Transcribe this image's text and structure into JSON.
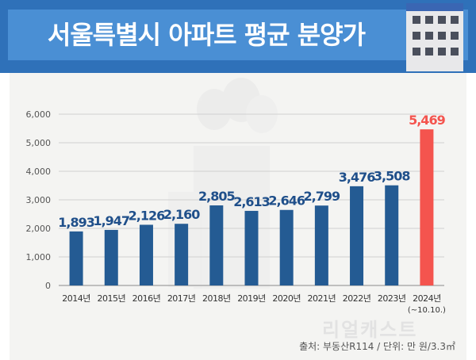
{
  "header": {
    "title": "서울특별시 아파트 평균 분양가"
  },
  "watermark_text": "리얼캐스트",
  "source_text": "출처: 부동산R114 / 단위: 만 원/3.3㎡",
  "chart_data": {
    "type": "bar",
    "title": "서울특별시 아파트 평균 분양가",
    "categories": [
      "2014년",
      "2015년",
      "2016년",
      "2017년",
      "2018년",
      "2019년",
      "2020년",
      "2021년",
      "2022년",
      "2023년",
      "2024년"
    ],
    "category_sublabels": [
      "",
      "",
      "",
      "",
      "",
      "",
      "",
      "",
      "",
      "",
      "(~10.10.)"
    ],
    "values": [
      1893,
      1947,
      2126,
      2160,
      2805,
      2613,
      2646,
      2799,
      3476,
      3508,
      5469
    ],
    "value_labels": [
      "1,893",
      "1,947",
      "2,126",
      "2,160",
      "2,805",
      "2,613",
      "2,646",
      "2,799",
      "3,476",
      "3,508",
      "5,469"
    ],
    "yticks": [
      "0",
      "1,000",
      "2,000",
      "3,000",
      "4,000",
      "5,000",
      "6,000"
    ],
    "ylim": [
      0,
      6000
    ],
    "grid": true,
    "xlabel": "",
    "ylabel": "",
    "bar_color": "#245b93",
    "highlight_color": "#f4544e",
    "highlight_index": 10
  }
}
